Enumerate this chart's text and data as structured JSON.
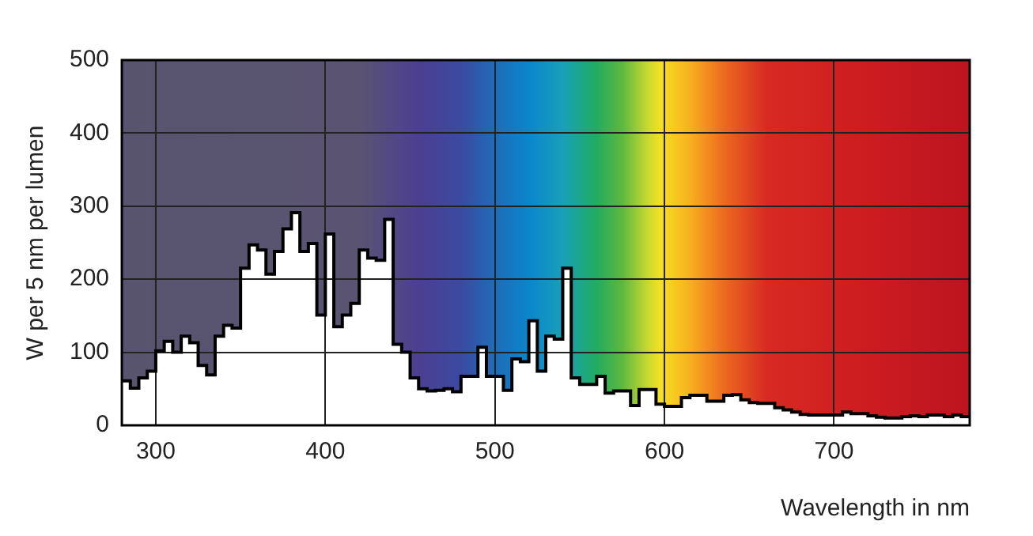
{
  "chart_data": {
    "type": "step",
    "xlabel": "Wavelength in nm",
    "ylabel": "W per 5 nm per lumen",
    "x": [
      280,
      285,
      290,
      295,
      300,
      305,
      310,
      315,
      320,
      325,
      330,
      335,
      340,
      345,
      350,
      355,
      360,
      365,
      370,
      375,
      380,
      385,
      390,
      395,
      400,
      405,
      410,
      415,
      420,
      425,
      430,
      435,
      440,
      445,
      450,
      455,
      460,
      465,
      470,
      475,
      480,
      485,
      490,
      495,
      500,
      505,
      510,
      515,
      520,
      525,
      530,
      535,
      540,
      545,
      550,
      555,
      560,
      565,
      570,
      575,
      580,
      585,
      590,
      595,
      600,
      605,
      610,
      615,
      620,
      625,
      630,
      635,
      640,
      645,
      650,
      655,
      660,
      665,
      670,
      675,
      680,
      685,
      690,
      695,
      700,
      705,
      710,
      715,
      720,
      725,
      730,
      735,
      740,
      745,
      750,
      755,
      760,
      765,
      770,
      775,
      780
    ],
    "values": [
      61,
      51,
      65,
      74,
      102,
      115,
      100,
      122,
      113,
      82,
      69,
      122,
      137,
      133,
      215,
      247,
      240,
      207,
      238,
      269,
      291,
      238,
      249,
      151,
      262,
      135,
      151,
      167,
      240,
      229,
      226,
      282,
      111,
      100,
      65,
      50,
      47,
      48,
      50,
      46,
      67,
      67,
      107,
      67,
      67,
      48,
      91,
      87,
      143,
      74,
      122,
      118,
      215,
      65,
      56,
      56,
      67,
      44,
      47,
      47,
      27,
      49,
      49,
      29,
      26,
      26,
      38,
      41,
      41,
      33,
      33,
      41,
      42,
      35,
      31,
      30,
      30,
      24,
      21,
      18,
      15,
      14,
      14,
      14,
      14,
      18,
      16,
      16,
      13,
      11,
      10,
      10,
      12,
      13,
      12,
      14,
      14,
      12,
      14,
      12,
      12
    ],
    "color": "#000000",
    "xlim": [
      280,
      780
    ],
    "xticks": [
      300,
      400,
      500,
      600,
      700
    ],
    "ylim": [
      0,
      500
    ],
    "yticks": [
      0,
      100,
      200,
      300,
      400,
      500
    ],
    "grid": true
  }
}
